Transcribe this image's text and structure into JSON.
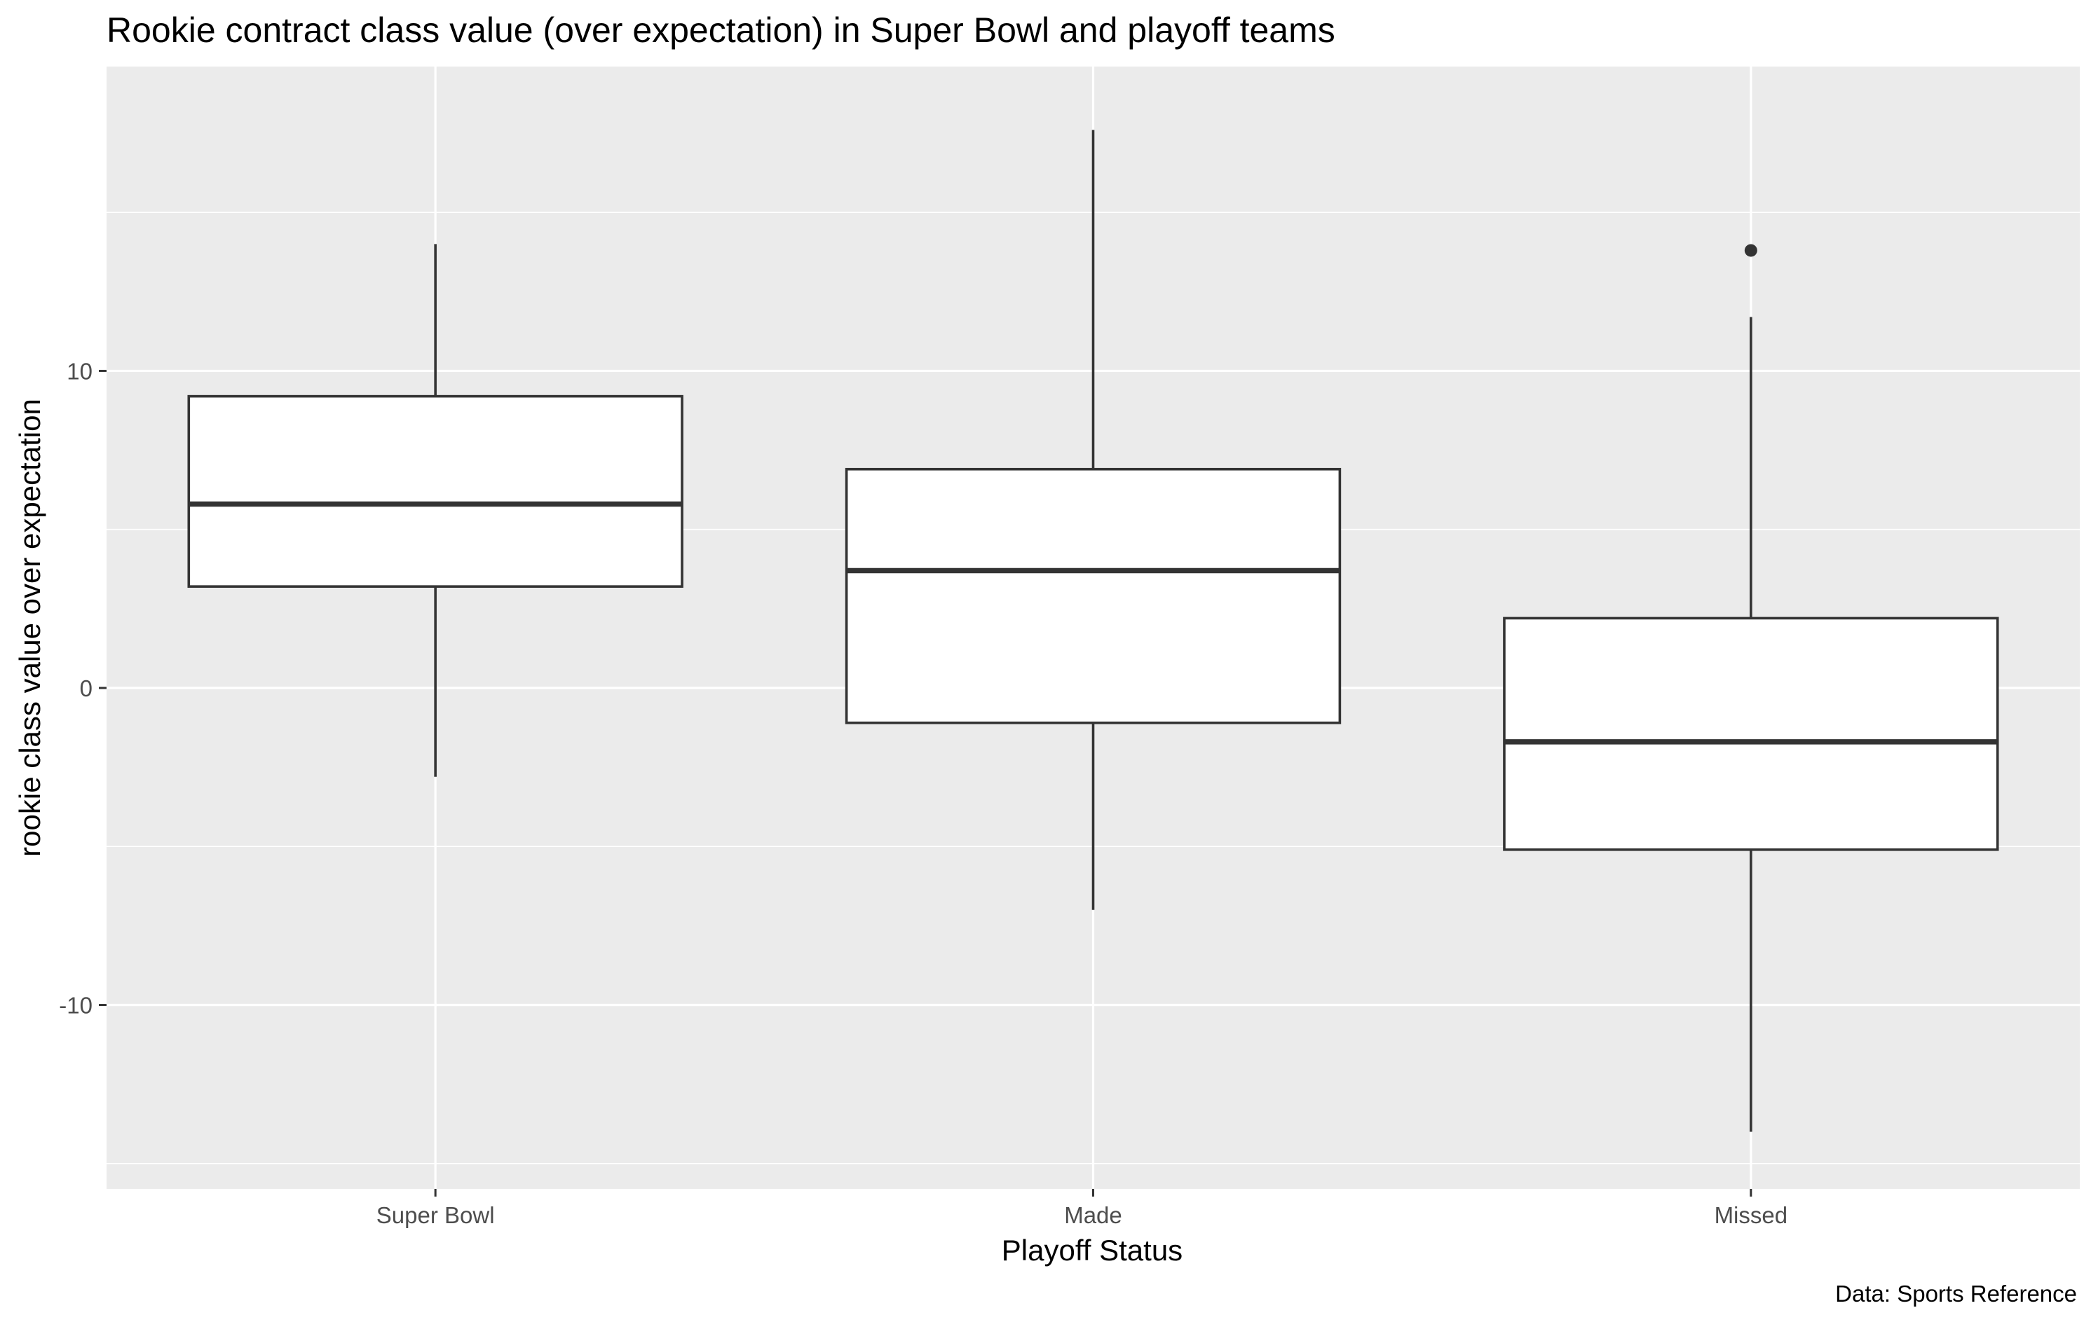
{
  "chart_data": {
    "type": "boxplot",
    "title": "Rookie contract class value (over expectation) in Super Bowl and playoff teams",
    "xlabel": "Playoff Status",
    "ylabel": "rookie class value over expectation",
    "caption": "Data: Sports Reference",
    "categories": [
      "Super Bowl",
      "Made",
      "Missed"
    ],
    "ylim": [
      -15.8,
      19.6
    ],
    "yticks": [
      -10,
      0,
      10
    ],
    "ytick_labels": [
      "-10",
      "0",
      "10"
    ],
    "grid": true,
    "colors": {
      "panel": "#ebebeb",
      "grid": "#ffffff",
      "box_fill": "#ffffff",
      "box_line": "#333333"
    },
    "boxes": [
      {
        "category": "Super Bowl",
        "whisker_low": -2.8,
        "q1": 3.2,
        "median": 5.8,
        "q3": 9.2,
        "whisker_high": 14.0,
        "outliers": []
      },
      {
        "category": "Made",
        "whisker_low": -7.0,
        "q1": -1.1,
        "median": 3.7,
        "q3": 6.9,
        "whisker_high": 17.6,
        "outliers": []
      },
      {
        "category": "Missed",
        "whisker_low": -14.0,
        "q1": -5.1,
        "median": -1.7,
        "q3": 2.2,
        "whisker_high": 11.7,
        "outliers": [
          13.8
        ]
      }
    ]
  }
}
